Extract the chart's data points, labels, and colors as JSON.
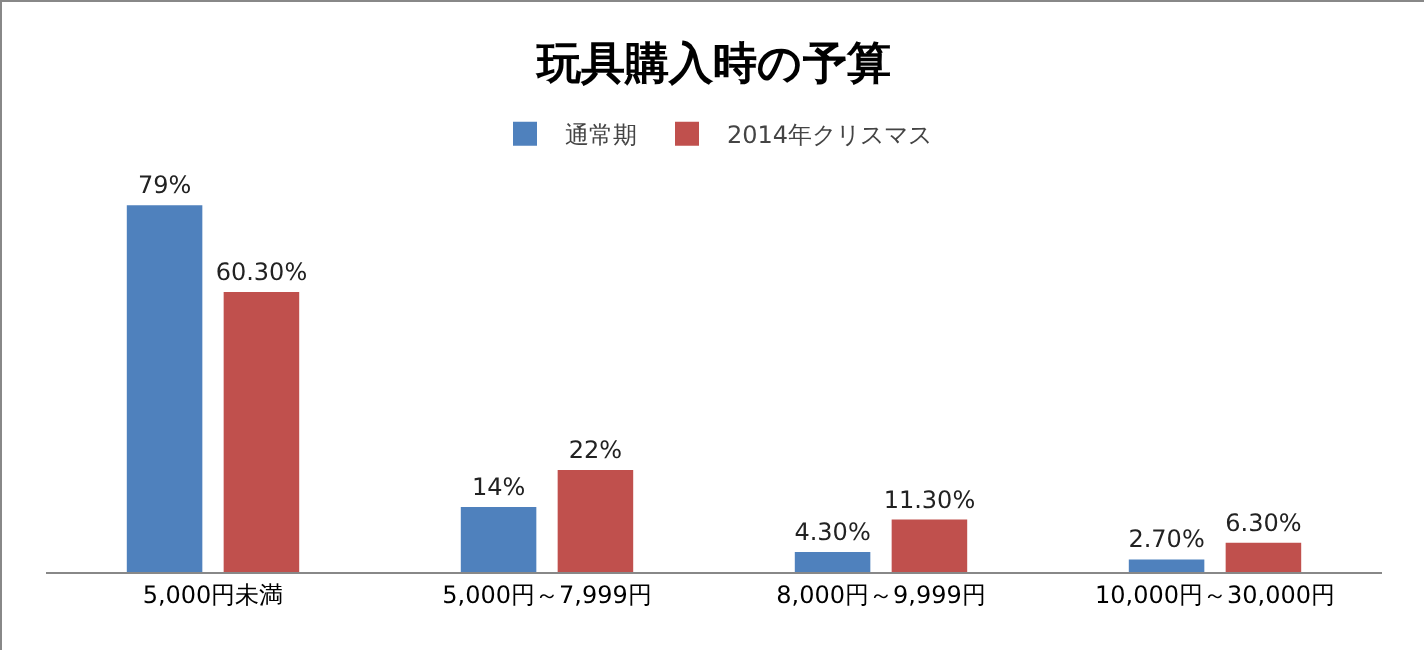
{
  "chart_data": {
    "type": "bar",
    "title": "玩具購入時の予算",
    "categories": [
      "5,000円未満",
      "5,000円～7,999円",
      "8,000円～9,999円",
      "10,000円～30,000円"
    ],
    "series": [
      {
        "name": "通常期",
        "color": "#4f81bd",
        "values": [
          79,
          14,
          4.3,
          2.7
        ],
        "value_labels": [
          "79%",
          "14%",
          "4.30%",
          "2.70%"
        ]
      },
      {
        "name": "2014年クリスマス",
        "color": "#c0504d",
        "values": [
          60.3,
          22,
          11.3,
          6.3
        ],
        "value_labels": [
          "60.30%",
          "22%",
          "11.30%",
          "6.30%"
        ]
      }
    ],
    "tick_labels": "x",
    "legend": "top",
    "grid": false
  }
}
